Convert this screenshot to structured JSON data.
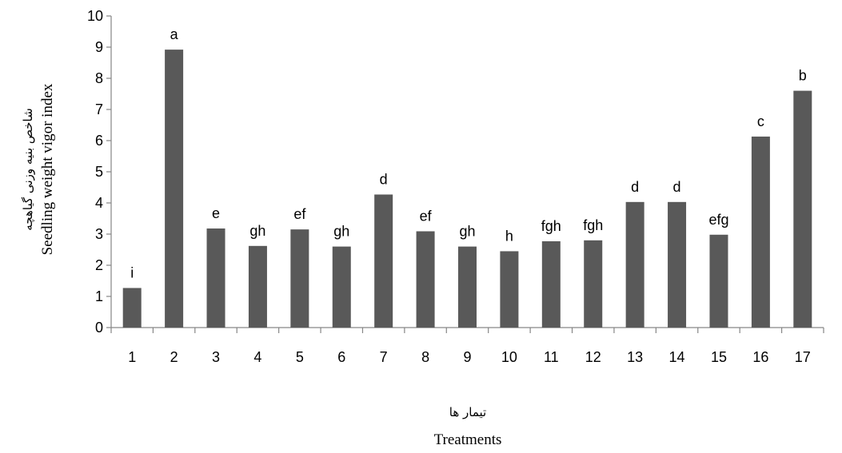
{
  "chart_data": {
    "type": "bar",
    "categories": [
      "1",
      "2",
      "3",
      "4",
      "5",
      "6",
      "7",
      "8",
      "9",
      "10",
      "11",
      "12",
      "13",
      "14",
      "15",
      "16",
      "17"
    ],
    "values": [
      1.27,
      8.92,
      3.18,
      2.62,
      3.15,
      2.6,
      4.27,
      3.09,
      2.6,
      2.45,
      2.77,
      2.8,
      4.03,
      4.03,
      2.98,
      6.13,
      7.6
    ],
    "data_labels": [
      "i",
      "a",
      "e",
      "gh",
      "ef",
      "gh",
      "d",
      "ef",
      "gh",
      "h",
      "fgh",
      "fgh",
      "d",
      "d",
      "efg",
      "c",
      "b"
    ],
    "ylim": [
      0,
      10
    ],
    "yticks": [
      0,
      1,
      2,
      3,
      4,
      5,
      6,
      7,
      8,
      9,
      10
    ],
    "ylabel": "Seedling weight vigor index",
    "ylabel_fa": "شاخص بنیه وزنی گیاهچه",
    "xlabel": "Treatments",
    "xlabel_fa": "تیمار ها",
    "grid": false,
    "legend": "none",
    "bar_color": "#595959"
  }
}
